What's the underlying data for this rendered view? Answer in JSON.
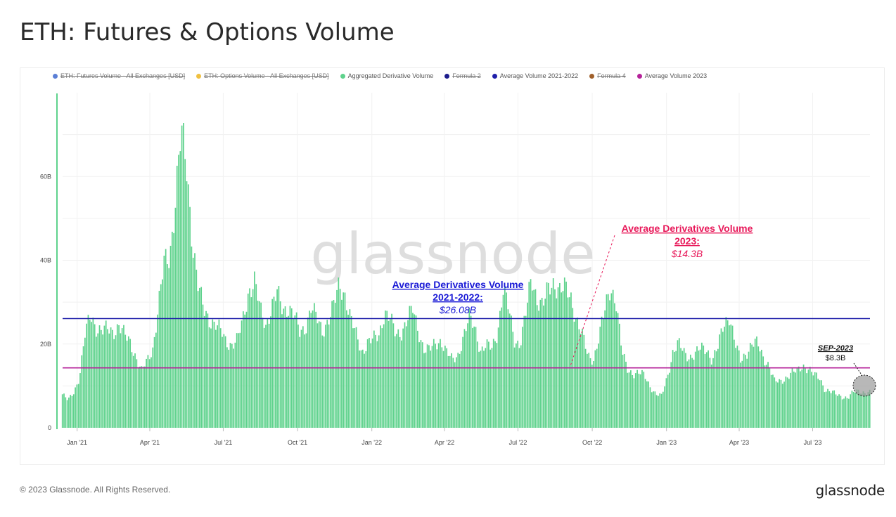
{
  "page": {
    "title": "ETH: Futures & Options Volume"
  },
  "legend": [
    {
      "label": "ETH: Futures Volume - All Exchanges [USD]",
      "color": "#5b7fd6",
      "enabled": false
    },
    {
      "label": "ETH: Options Volume - All Exchanges [USD]",
      "color": "#f0c040",
      "enabled": false
    },
    {
      "label": "Aggregated Derivative Volume",
      "color": "#5ed28c",
      "enabled": true
    },
    {
      "label": "Formula 2",
      "color": "#1c1c8c",
      "enabled": false
    },
    {
      "label": "Average Volume 2021-2022",
      "color": "#1f1faa",
      "enabled": true
    },
    {
      "label": "Formula 4",
      "color": "#a0602a",
      "enabled": false
    },
    {
      "label": "Average Volume 2023",
      "color": "#b5229a",
      "enabled": true
    }
  ],
  "watermark": "glassnode",
  "annotations": {
    "avg_2021_2022": {
      "line1": "Average Derivatives Volume",
      "line2": "2021-2022:",
      "value": "$26.08B",
      "color": "#1a1ad6"
    },
    "avg_2023": {
      "line1": "Average Derivatives Volume",
      "line2": "2023:",
      "value": "$14.3B",
      "color": "#e8195a"
    },
    "sep_2023": {
      "label": "SEP-2023",
      "value": "$8.3B"
    }
  },
  "footer": {
    "copyright": "© 2023 Glassnode. All Rights Reserved.",
    "logo": "glassnode"
  },
  "chart_data": {
    "type": "bar",
    "title": "ETH: Futures & Options Volume",
    "x_tick_labels": [
      "Jan '21",
      "Apr '21",
      "Jul '21",
      "Oct '21",
      "Jan '22",
      "Apr '22",
      "Jul '22",
      "Oct '22",
      "Jan '23",
      "Apr '23",
      "Jul '23"
    ],
    "y_tick_labels": [
      "0",
      "20B",
      "40B",
      "60B"
    ],
    "ylim": [
      0,
      80
    ],
    "y_unit": "B USD",
    "grid": true,
    "legend_position": "top",
    "x_range": [
      "2020-12-14",
      "2023-09-10"
    ],
    "series": [
      {
        "name": "Aggregated Derivative Volume",
        "color": "#5ed28c",
        "points": [
          [
            "2020-12-14",
            8
          ],
          [
            "2020-12-21",
            6.5
          ],
          [
            "2020-12-28",
            8.5
          ],
          [
            "2021-01-04",
            12
          ],
          [
            "2021-01-11",
            22
          ],
          [
            "2021-01-18",
            27
          ],
          [
            "2021-01-25",
            24
          ],
          [
            "2021-02-01",
            23
          ],
          [
            "2021-02-08",
            23.5
          ],
          [
            "2021-02-15",
            23
          ],
          [
            "2021-02-22",
            24.5
          ],
          [
            "2021-03-01",
            22
          ],
          [
            "2021-03-08",
            20.5
          ],
          [
            "2021-03-15",
            17
          ],
          [
            "2021-03-22",
            13.5
          ],
          [
            "2021-03-29",
            16
          ],
          [
            "2021-04-05",
            19
          ],
          [
            "2021-04-12",
            29
          ],
          [
            "2021-04-19",
            39
          ],
          [
            "2021-04-26",
            41
          ],
          [
            "2021-05-03",
            55
          ],
          [
            "2021-05-10",
            70
          ],
          [
            "2021-05-17",
            62
          ],
          [
            "2021-05-24",
            45
          ],
          [
            "2021-05-31",
            34
          ],
          [
            "2021-06-07",
            28
          ],
          [
            "2021-06-14",
            26
          ],
          [
            "2021-06-21",
            25
          ],
          [
            "2021-06-28",
            23
          ],
          [
            "2021-07-05",
            20.5
          ],
          [
            "2021-07-12",
            20
          ],
          [
            "2021-07-19",
            21
          ],
          [
            "2021-07-26",
            26
          ],
          [
            "2021-08-02",
            33
          ],
          [
            "2021-08-09",
            35
          ],
          [
            "2021-08-16",
            28
          ],
          [
            "2021-08-23",
            24.5
          ],
          [
            "2021-08-30",
            29
          ],
          [
            "2021-09-06",
            32
          ],
          [
            "2021-09-13",
            28
          ],
          [
            "2021-09-20",
            29
          ],
          [
            "2021-09-27",
            27
          ],
          [
            "2021-10-04",
            22.5
          ],
          [
            "2021-10-11",
            24
          ],
          [
            "2021-10-18",
            29
          ],
          [
            "2021-10-25",
            26
          ],
          [
            "2021-11-01",
            23
          ],
          [
            "2021-11-08",
            26
          ],
          [
            "2021-11-15",
            29
          ],
          [
            "2021-11-22",
            34
          ],
          [
            "2021-11-29",
            32
          ],
          [
            "2021-12-06",
            26
          ],
          [
            "2021-12-13",
            22
          ],
          [
            "2021-12-20",
            18
          ],
          [
            "2021-12-27",
            20.5
          ],
          [
            "2022-01-03",
            21
          ],
          [
            "2022-01-10",
            22
          ],
          [
            "2022-01-17",
            28
          ],
          [
            "2022-01-24",
            26
          ],
          [
            "2022-01-31",
            22
          ],
          [
            "2022-02-07",
            23
          ],
          [
            "2022-02-14",
            26
          ],
          [
            "2022-02-21",
            28
          ],
          [
            "2022-02-28",
            23
          ],
          [
            "2022-03-07",
            19
          ],
          [
            "2022-03-14",
            18.5
          ],
          [
            "2022-03-21",
            20
          ],
          [
            "2022-03-28",
            21
          ],
          [
            "2022-04-04",
            18
          ],
          [
            "2022-04-11",
            16
          ],
          [
            "2022-04-18",
            17.5
          ],
          [
            "2022-04-25",
            22
          ],
          [
            "2022-05-02",
            26
          ],
          [
            "2022-05-09",
            24
          ],
          [
            "2022-05-16",
            18.5
          ],
          [
            "2022-05-23",
            19.5
          ],
          [
            "2022-05-30",
            19
          ],
          [
            "2022-06-06",
            23
          ],
          [
            "2022-06-13",
            33
          ],
          [
            "2022-06-20",
            28
          ],
          [
            "2022-06-27",
            21
          ],
          [
            "2022-07-04",
            20
          ],
          [
            "2022-07-11",
            27
          ],
          [
            "2022-07-18",
            36
          ],
          [
            "2022-07-25",
            31
          ],
          [
            "2022-08-01",
            29
          ],
          [
            "2022-08-08",
            33
          ],
          [
            "2022-08-15",
            35
          ],
          [
            "2022-08-22",
            33
          ],
          [
            "2022-08-29",
            33
          ],
          [
            "2022-09-05",
            31
          ],
          [
            "2022-09-12",
            26
          ],
          [
            "2022-09-19",
            22
          ],
          [
            "2022-09-26",
            17
          ],
          [
            "2022-10-03",
            16.5
          ],
          [
            "2022-10-10",
            22
          ],
          [
            "2022-10-17",
            28
          ],
          [
            "2022-10-24",
            34
          ],
          [
            "2022-10-31",
            30
          ],
          [
            "2022-11-07",
            18
          ],
          [
            "2022-11-14",
            14
          ],
          [
            "2022-11-21",
            13
          ],
          [
            "2022-11-28",
            13
          ],
          [
            "2022-12-05",
            12.5
          ],
          [
            "2022-12-12",
            10
          ],
          [
            "2022-12-19",
            8
          ],
          [
            "2022-12-26",
            7.5
          ],
          [
            "2023-01-02",
            12
          ],
          [
            "2023-01-09",
            18
          ],
          [
            "2023-01-16",
            20
          ],
          [
            "2023-01-23",
            18
          ],
          [
            "2023-01-30",
            17
          ],
          [
            "2023-02-06",
            17.5
          ],
          [
            "2023-02-13",
            19
          ],
          [
            "2023-02-20",
            19
          ],
          [
            "2023-02-27",
            16
          ],
          [
            "2023-03-06",
            19
          ],
          [
            "2023-03-13",
            25
          ],
          [
            "2023-03-20",
            27
          ],
          [
            "2023-03-27",
            20
          ],
          [
            "2023-04-03",
            16
          ],
          [
            "2023-04-10",
            18
          ],
          [
            "2023-04-17",
            20
          ],
          [
            "2023-04-24",
            20
          ],
          [
            "2023-05-01",
            17
          ],
          [
            "2023-05-08",
            15
          ],
          [
            "2023-05-15",
            11
          ],
          [
            "2023-05-22",
            11
          ],
          [
            "2023-05-29",
            12
          ],
          [
            "2023-06-05",
            13
          ],
          [
            "2023-06-12",
            13.5
          ],
          [
            "2023-06-19",
            15
          ],
          [
            "2023-06-26",
            14
          ],
          [
            "2023-07-03",
            12.5
          ],
          [
            "2023-07-10",
            12
          ],
          [
            "2023-07-17",
            9
          ],
          [
            "2023-07-24",
            8.5
          ],
          [
            "2023-07-31",
            8
          ],
          [
            "2023-08-07",
            7.5
          ],
          [
            "2023-08-14",
            7
          ],
          [
            "2023-08-21",
            8.5
          ],
          [
            "2023-08-28",
            9
          ],
          [
            "2023-09-04",
            8.3
          ],
          [
            "2023-09-10",
            8.3
          ]
        ]
      },
      {
        "name": "Average Volume 2021-2022",
        "color": "#1f1faa",
        "value": 26.08
      },
      {
        "name": "Average Volume 2023",
        "color": "#b5229a",
        "value": 14.3
      }
    ]
  }
}
